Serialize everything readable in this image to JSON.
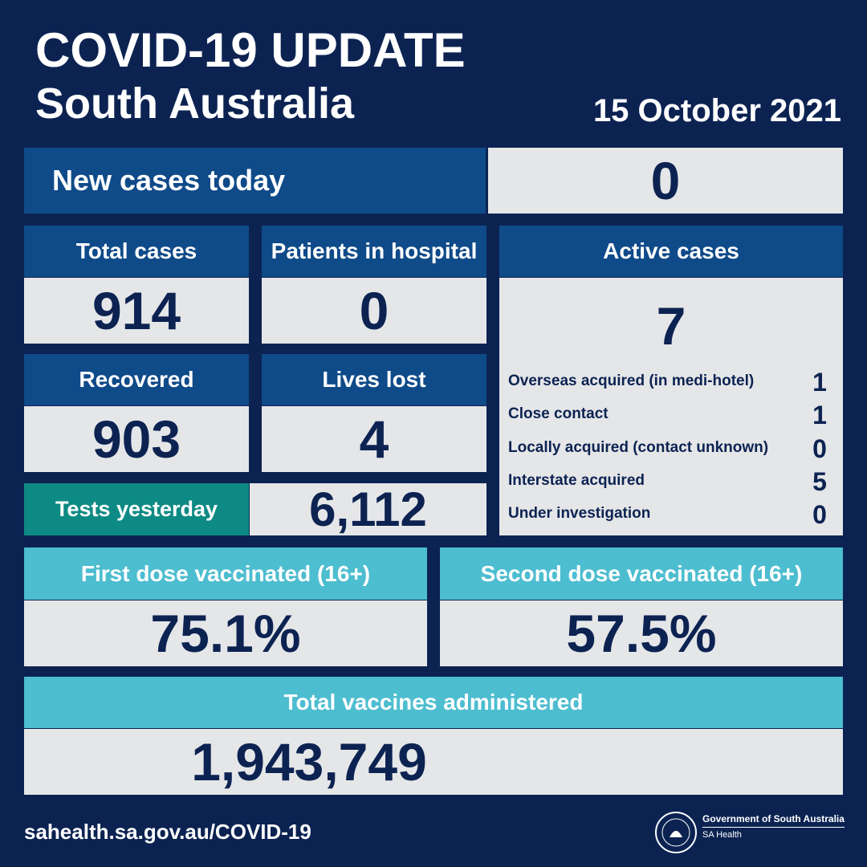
{
  "header": {
    "title": "COVID-19 UPDATE",
    "subtitle": "South Australia",
    "date": "15 October 2021"
  },
  "new_cases": {
    "label": "New cases today",
    "value": "0"
  },
  "stats": [
    {
      "label": "Total cases",
      "value": "914"
    },
    {
      "label": "Patients in hospital",
      "value": "0"
    },
    {
      "label": "Recovered",
      "value": "903"
    },
    {
      "label": "Lives lost",
      "value": "4"
    }
  ],
  "tests": {
    "label": "Tests yesterday",
    "value": "6,112"
  },
  "active_cases": {
    "label": "Active cases",
    "value": "7",
    "breakdown": [
      {
        "label": "Overseas acquired (in medi-hotel)",
        "value": "1"
      },
      {
        "label": "Close contact",
        "value": "1"
      },
      {
        "label": "Locally acquired (contact unknown)",
        "value": "0"
      },
      {
        "label": "Interstate acquired",
        "value": "5"
      },
      {
        "label": "Under investigation",
        "value": "0"
      }
    ]
  },
  "vaccination": [
    {
      "label": "First dose vaccinated (16+)",
      "value": "75.1%"
    },
    {
      "label": "Second dose vaccinated (16+)",
      "value": "57.5%"
    }
  ],
  "total_vaccines": {
    "label": "Total vaccines administered",
    "value": "1,943,749"
  },
  "footer": {
    "url": "sahealth.sa.gov.au/COVID-19",
    "government": "Government of South Australia",
    "department": "SA Health"
  }
}
